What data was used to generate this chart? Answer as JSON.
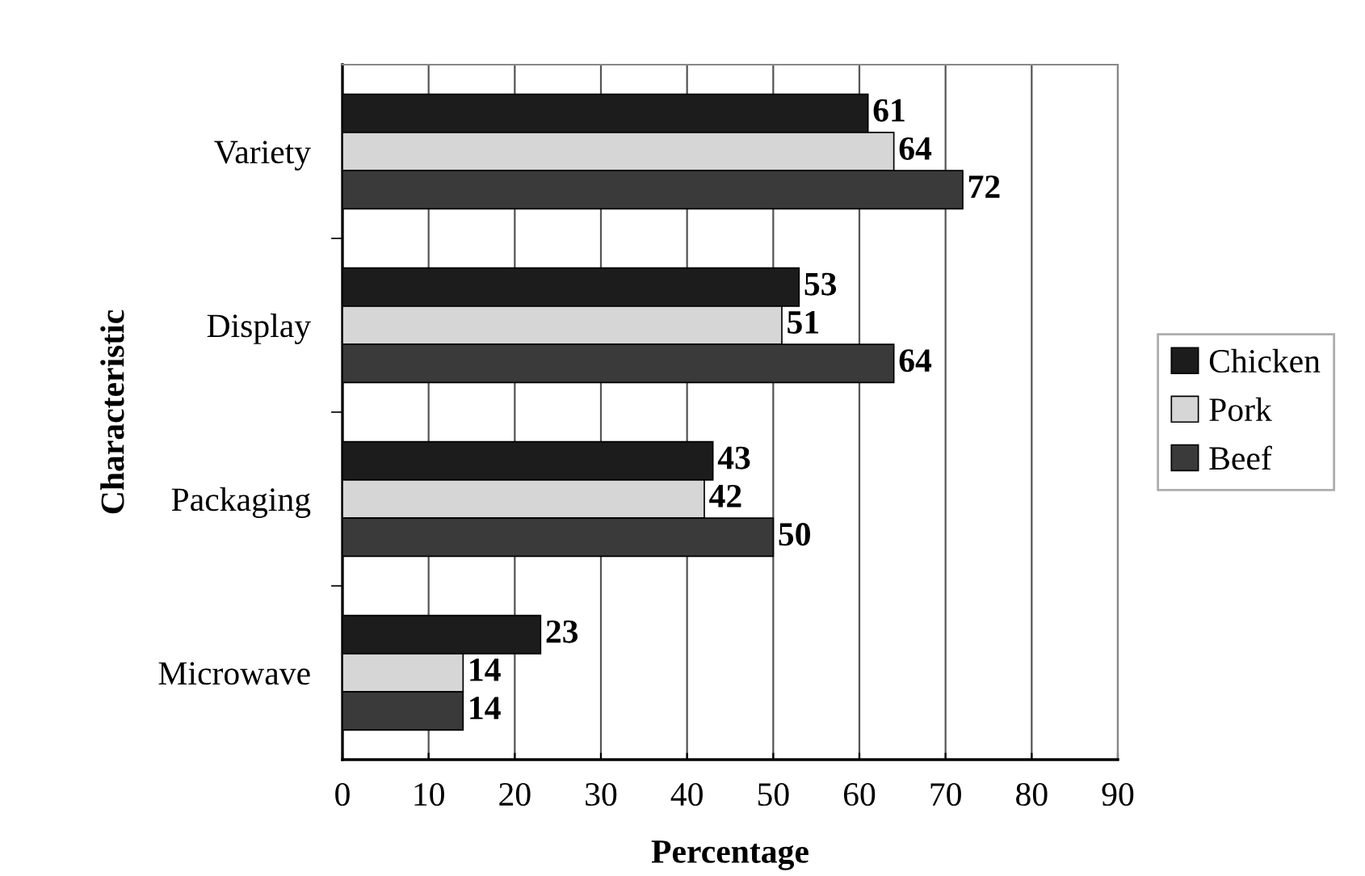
{
  "chart_data": {
    "type": "bar",
    "orientation": "horizontal",
    "xlabel": "Percentage",
    "ylabel": "Characteristic",
    "categories": [
      "Variety",
      "Display",
      "Packaging",
      "Microwave"
    ],
    "series": [
      {
        "name": "Chicken",
        "color": "#1c1c1c",
        "values": [
          61,
          53,
          43,
          23
        ]
      },
      {
        "name": "Pork",
        "color": "#d6d6d6",
        "values": [
          64,
          51,
          42,
          14
        ]
      },
      {
        "name": "Beef",
        "color": "#3a3a3a",
        "values": [
          72,
          64,
          50,
          14
        ]
      }
    ],
    "xlim": [
      0,
      90
    ],
    "xticks": [
      0,
      10,
      20,
      30,
      40,
      50,
      60,
      70,
      80,
      90
    ],
    "grid": "x",
    "legend": "right",
    "data_labels": true
  }
}
